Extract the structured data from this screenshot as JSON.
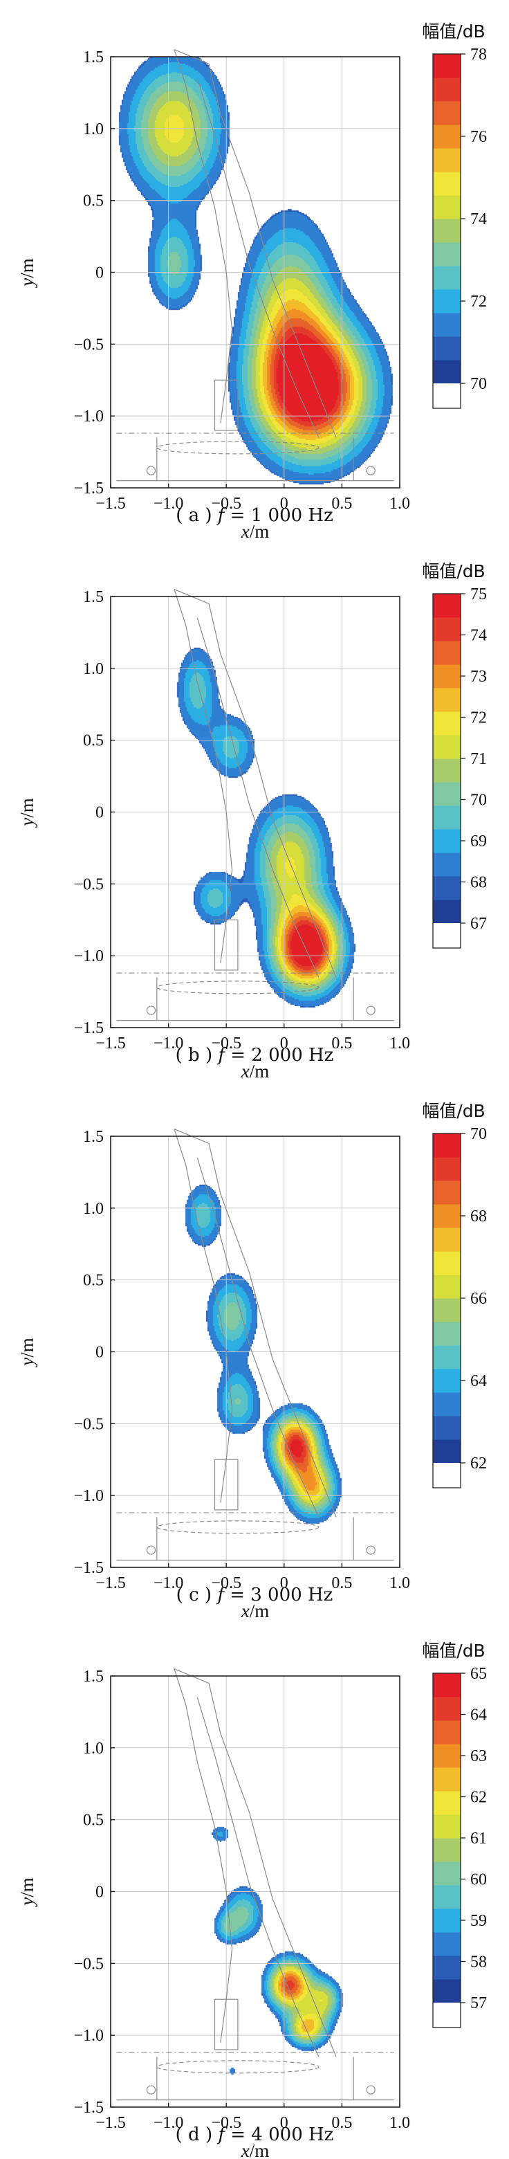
{
  "chart_data": [
    {
      "type": "heatmap",
      "caption_prefix": "( a )",
      "caption_var": "f",
      "caption_value": "= 1 000 Hz",
      "frequency_hz": 1000,
      "xlabel_var": "x",
      "xlabel_unit": "/m",
      "ylabel_var": "y",
      "ylabel_unit": "/m",
      "xlim": [
        -1.5,
        1.0
      ],
      "ylim": [
        -1.5,
        1.5
      ],
      "xticks": [
        "−1.5",
        "−1.0",
        "−0.5",
        "0",
        "0.5",
        "1.0"
      ],
      "yticks": [
        "1.5",
        "1.0",
        "0.5",
        "0",
        "−0.5",
        "−1.0",
        "−1.5"
      ],
      "colorbar_title": "幅值/dB",
      "colorbar_min": 70,
      "colorbar_max": 78,
      "colorbar_ticks": [
        "78",
        "76",
        "74",
        "72",
        "70"
      ],
      "sources": [
        {
          "x": -0.95,
          "y": 1.0,
          "sx": 0.28,
          "sy": 0.32,
          "a": 4.2
        },
        {
          "x": -0.95,
          "y": 0.05,
          "sx": 0.16,
          "sy": 0.22,
          "a": 2.6
        },
        {
          "x": 0.05,
          "y": -0.25,
          "sx": 0.26,
          "sy": 0.42,
          "a": 3.6
        },
        {
          "x": 0.25,
          "y": -0.82,
          "sx": 0.34,
          "sy": 0.32,
          "a": 7.6
        }
      ]
    },
    {
      "type": "heatmap",
      "caption_prefix": "( b )",
      "caption_var": "f",
      "caption_value": "= 2 000 Hz",
      "frequency_hz": 2000,
      "xlabel_var": "x",
      "xlabel_unit": "/m",
      "ylabel_var": "y",
      "ylabel_unit": "/m",
      "xlim": [
        -1.5,
        1.0
      ],
      "ylim": [
        -1.5,
        1.5
      ],
      "xticks": [
        "−1.5",
        "−1.0",
        "−0.5",
        "0",
        "0.5",
        "1.0"
      ],
      "yticks": [
        "1.5",
        "1.0",
        "0.5",
        "0",
        "−0.5",
        "−1.0",
        "−1.5"
      ],
      "colorbar_title": "幅值/dB",
      "colorbar_min": 67,
      "colorbar_max": 75,
      "colorbar_ticks": [
        "75",
        "74",
        "73",
        "72",
        "71",
        "70",
        "69",
        "68",
        "67"
      ],
      "sources": [
        {
          "x": -0.75,
          "y": 0.85,
          "sx": 0.13,
          "sy": 0.22,
          "a": 2.3
        },
        {
          "x": -0.45,
          "y": 0.45,
          "sx": 0.15,
          "sy": 0.16,
          "a": 2.2
        },
        {
          "x": -0.6,
          "y": -0.6,
          "sx": 0.14,
          "sy": 0.14,
          "a": 2.2
        },
        {
          "x": 0.05,
          "y": -0.35,
          "sx": 0.22,
          "sy": 0.28,
          "a": 4.0
        },
        {
          "x": 0.2,
          "y": -0.95,
          "sx": 0.2,
          "sy": 0.2,
          "a": 7.8
        }
      ]
    },
    {
      "type": "heatmap",
      "caption_prefix": "( c )",
      "caption_var": "f",
      "caption_value": "= 3 000 Hz",
      "frequency_hz": 3000,
      "xlabel_var": "x",
      "xlabel_unit": "/m",
      "ylabel_var": "y",
      "ylabel_unit": "/m",
      "xlim": [
        -1.5,
        1.0
      ],
      "ylim": [
        -1.5,
        1.5
      ],
      "xticks": [
        "−1.5",
        "−1.0",
        "−0.5",
        "0",
        "0.5",
        "1.0"
      ],
      "yticks": [
        "1.5",
        "1.0",
        "0.5",
        "0",
        "−0.5",
        "−1.0",
        "−1.5"
      ],
      "colorbar_title": "幅值/dB",
      "colorbar_min": 62,
      "colorbar_max": 70,
      "colorbar_ticks": [
        "70",
        "68",
        "66",
        "64",
        "62"
      ],
      "sources": [
        {
          "x": -0.7,
          "y": 0.95,
          "sx": 0.12,
          "sy": 0.16,
          "a": 2.3
        },
        {
          "x": -0.45,
          "y": 0.25,
          "sx": 0.15,
          "sy": 0.2,
          "a": 2.8
        },
        {
          "x": -0.4,
          "y": -0.35,
          "sx": 0.13,
          "sy": 0.16,
          "a": 2.5
        },
        {
          "x": 0.1,
          "y": -0.65,
          "sx": 0.14,
          "sy": 0.15,
          "a": 6.6
        },
        {
          "x": 0.25,
          "y": -0.95,
          "sx": 0.14,
          "sy": 0.14,
          "a": 4.6
        }
      ]
    },
    {
      "type": "heatmap",
      "caption_prefix": "( d )",
      "caption_var": "f",
      "caption_value": "= 4 000 Hz",
      "frequency_hz": 4000,
      "xlabel_var": "x",
      "xlabel_unit": "/m",
      "ylabel_var": "y",
      "ylabel_unit": "/m",
      "xlim": [
        -1.5,
        1.0
      ],
      "ylim": [
        -1.5,
        1.5
      ],
      "xticks": [
        "−1.5",
        "−1.0",
        "−0.5",
        "0",
        "0.5",
        "1.0"
      ],
      "yticks": [
        "1.5",
        "1.0",
        "0.5",
        "0",
        "−0.5",
        "−1.0",
        "−1.5"
      ],
      "colorbar_title": "幅值/dB",
      "colorbar_min": 57,
      "colorbar_max": 65,
      "colorbar_ticks": [
        "65",
        "64",
        "63",
        "62",
        "61",
        "60",
        "59",
        "58",
        "57"
      ],
      "sources": [
        {
          "x": -0.55,
          "y": 0.4,
          "sx": 0.07,
          "sy": 0.05,
          "a": 1.6
        },
        {
          "x": -0.35,
          "y": -0.15,
          "sx": 0.12,
          "sy": 0.13,
          "a": 2.6
        },
        {
          "x": -0.5,
          "y": -0.25,
          "sx": 0.08,
          "sy": 0.08,
          "a": 1.8
        },
        {
          "x": 0.05,
          "y": -0.65,
          "sx": 0.13,
          "sy": 0.12,
          "a": 6.2
        },
        {
          "x": 0.35,
          "y": -0.75,
          "sx": 0.1,
          "sy": 0.1,
          "a": 3.4
        },
        {
          "x": 0.2,
          "y": -0.95,
          "sx": 0.12,
          "sy": 0.09,
          "a": 4.6
        },
        {
          "x": -0.45,
          "y": -1.25,
          "sx": 0.03,
          "sy": 0.03,
          "a": 1.3
        }
      ]
    }
  ]
}
